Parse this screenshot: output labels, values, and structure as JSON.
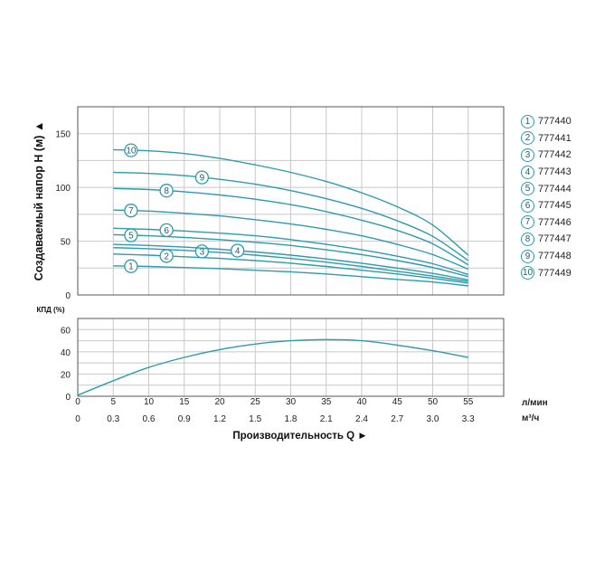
{
  "colors": {
    "curve": "#2b9bb0",
    "grid": "#c8c8c8",
    "frame": "#555555",
    "badge_text": "#1d5f6b"
  },
  "chart_data": [
    {
      "type": "line",
      "ylabel": "Создаваемый напор H (м) ▲",
      "ylim": [
        0,
        175
      ],
      "yticks": [
        0,
        50,
        100,
        150
      ],
      "xlim": [
        0,
        60
      ],
      "x_gridlines": [
        5,
        10,
        15,
        20,
        25,
        30,
        35,
        40,
        45,
        50,
        55
      ],
      "grid": true,
      "legend_position": "right",
      "x": [
        5,
        10,
        15,
        20,
        25,
        30,
        35,
        40,
        45,
        50,
        55
      ],
      "series": [
        {
          "name": "777440",
          "label": "1",
          "values": [
            27,
            26.5,
            25.5,
            24.5,
            23,
            21.5,
            19.5,
            17,
            14.5,
            12,
            8.5
          ],
          "label_x": 7.5
        },
        {
          "name": "777441",
          "label": "2",
          "values": [
            38,
            37,
            35.5,
            34,
            32,
            29.5,
            26.5,
            23,
            19.5,
            15.5,
            11
          ],
          "label_x": 12.5
        },
        {
          "name": "777442",
          "label": "3",
          "values": [
            44,
            43,
            41.5,
            39.5,
            37,
            34,
            30.5,
            26.5,
            22,
            17.5,
            12.5
          ],
          "label_x": 17.5
        },
        {
          "name": "777443",
          "label": "4",
          "values": [
            47,
            46,
            44.5,
            42.5,
            40,
            37,
            33.5,
            29.5,
            25,
            20,
            14
          ],
          "label_x": 22.5
        },
        {
          "name": "777444",
          "label": "5",
          "values": [
            56,
            55,
            53.5,
            51.5,
            49,
            46,
            42,
            37.5,
            32,
            25.5,
            17
          ],
          "label_x": 7.5
        },
        {
          "name": "777445",
          "label": "6",
          "values": [
            62,
            61,
            59.5,
            57.5,
            55,
            51.5,
            47,
            42,
            36,
            29,
            19
          ],
          "label_x": 12.5
        },
        {
          "name": "777446",
          "label": "7",
          "values": [
            79,
            78,
            76,
            73.5,
            70,
            66,
            61,
            55,
            47,
            37.5,
            24
          ],
          "label_x": 7.5
        },
        {
          "name": "777447",
          "label": "8",
          "values": [
            99,
            98,
            96,
            93,
            89,
            84,
            77.5,
            69.5,
            60,
            47.5,
            28
          ],
          "label_x": 12.5
        },
        {
          "name": "777448",
          "label": "9",
          "values": [
            114,
            113,
            111,
            107.5,
            103,
            97,
            89.5,
            80.5,
            69,
            54.5,
            32
          ],
          "label_x": 17.5
        },
        {
          "name": "777449",
          "label": "10",
          "values": [
            135,
            134,
            131.5,
            127,
            121,
            114,
            105.5,
            95,
            82,
            65,
            37
          ],
          "label_x": 7.5
        }
      ]
    },
    {
      "type": "line",
      "ylabel": "КПД (%)",
      "ylim": [
        0,
        70
      ],
      "yticks": [
        0,
        20,
        40,
        60
      ],
      "xlim": [
        0,
        60
      ],
      "grid": true,
      "xlabel": "Производительность Q ►",
      "x_ticks": [
        0,
        5,
        10,
        15,
        20,
        25,
        30,
        35,
        40,
        45,
        50,
        55
      ],
      "x_unit": "л/мин",
      "x2_ticks": [
        "0",
        "0.3",
        "0.6",
        "0.9",
        "1.2",
        "1.5",
        "1.8",
        "2.1",
        "2.4",
        "2.7",
        "3.0",
        "3.3"
      ],
      "x2_unit": "м³/ч",
      "series": [
        {
          "x": [
            0,
            5,
            10,
            15,
            20,
            25,
            30,
            35,
            40,
            45,
            50,
            55
          ],
          "values": [
            1,
            14,
            26,
            35,
            42,
            47,
            50,
            51,
            50,
            46,
            41,
            35
          ]
        }
      ]
    }
  ]
}
